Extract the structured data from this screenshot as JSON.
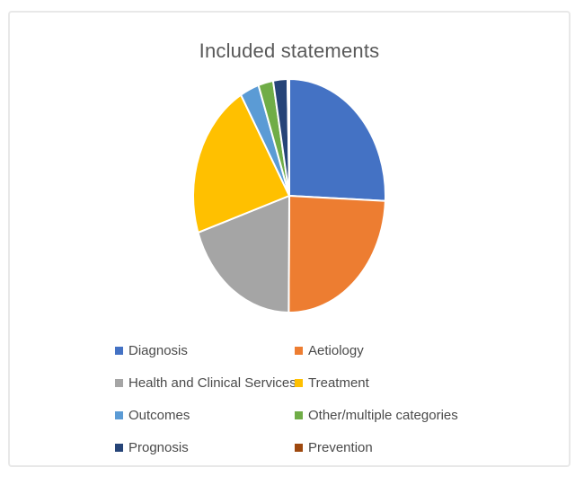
{
  "chart_data": {
    "type": "pie",
    "title": "Included statements",
    "categories": [
      "Diagnosis",
      "Aetiology",
      "Health and Clinical Services",
      "Treatment",
      "Outcomes",
      "Other/multiple categories",
      "Prognosis",
      "Prevention"
    ],
    "values": [
      25.7,
      24.4,
      19.8,
      21.7,
      3.2,
      2.5,
      2.4,
      0.3
    ],
    "colors": [
      "#4472C4",
      "#ED7D31",
      "#A5A5A5",
      "#FFC000",
      "#5B9BD5",
      "#70AD47",
      "#264478",
      "#9E480E"
    ],
    "start_angle_deg": 0,
    "direction": "clockwise",
    "slice_border_color": "#FFFFFF",
    "legend_position": "bottom",
    "legend_columns": 2,
    "title_color": "#595959",
    "frame_border_color": "#E8E8E8"
  }
}
